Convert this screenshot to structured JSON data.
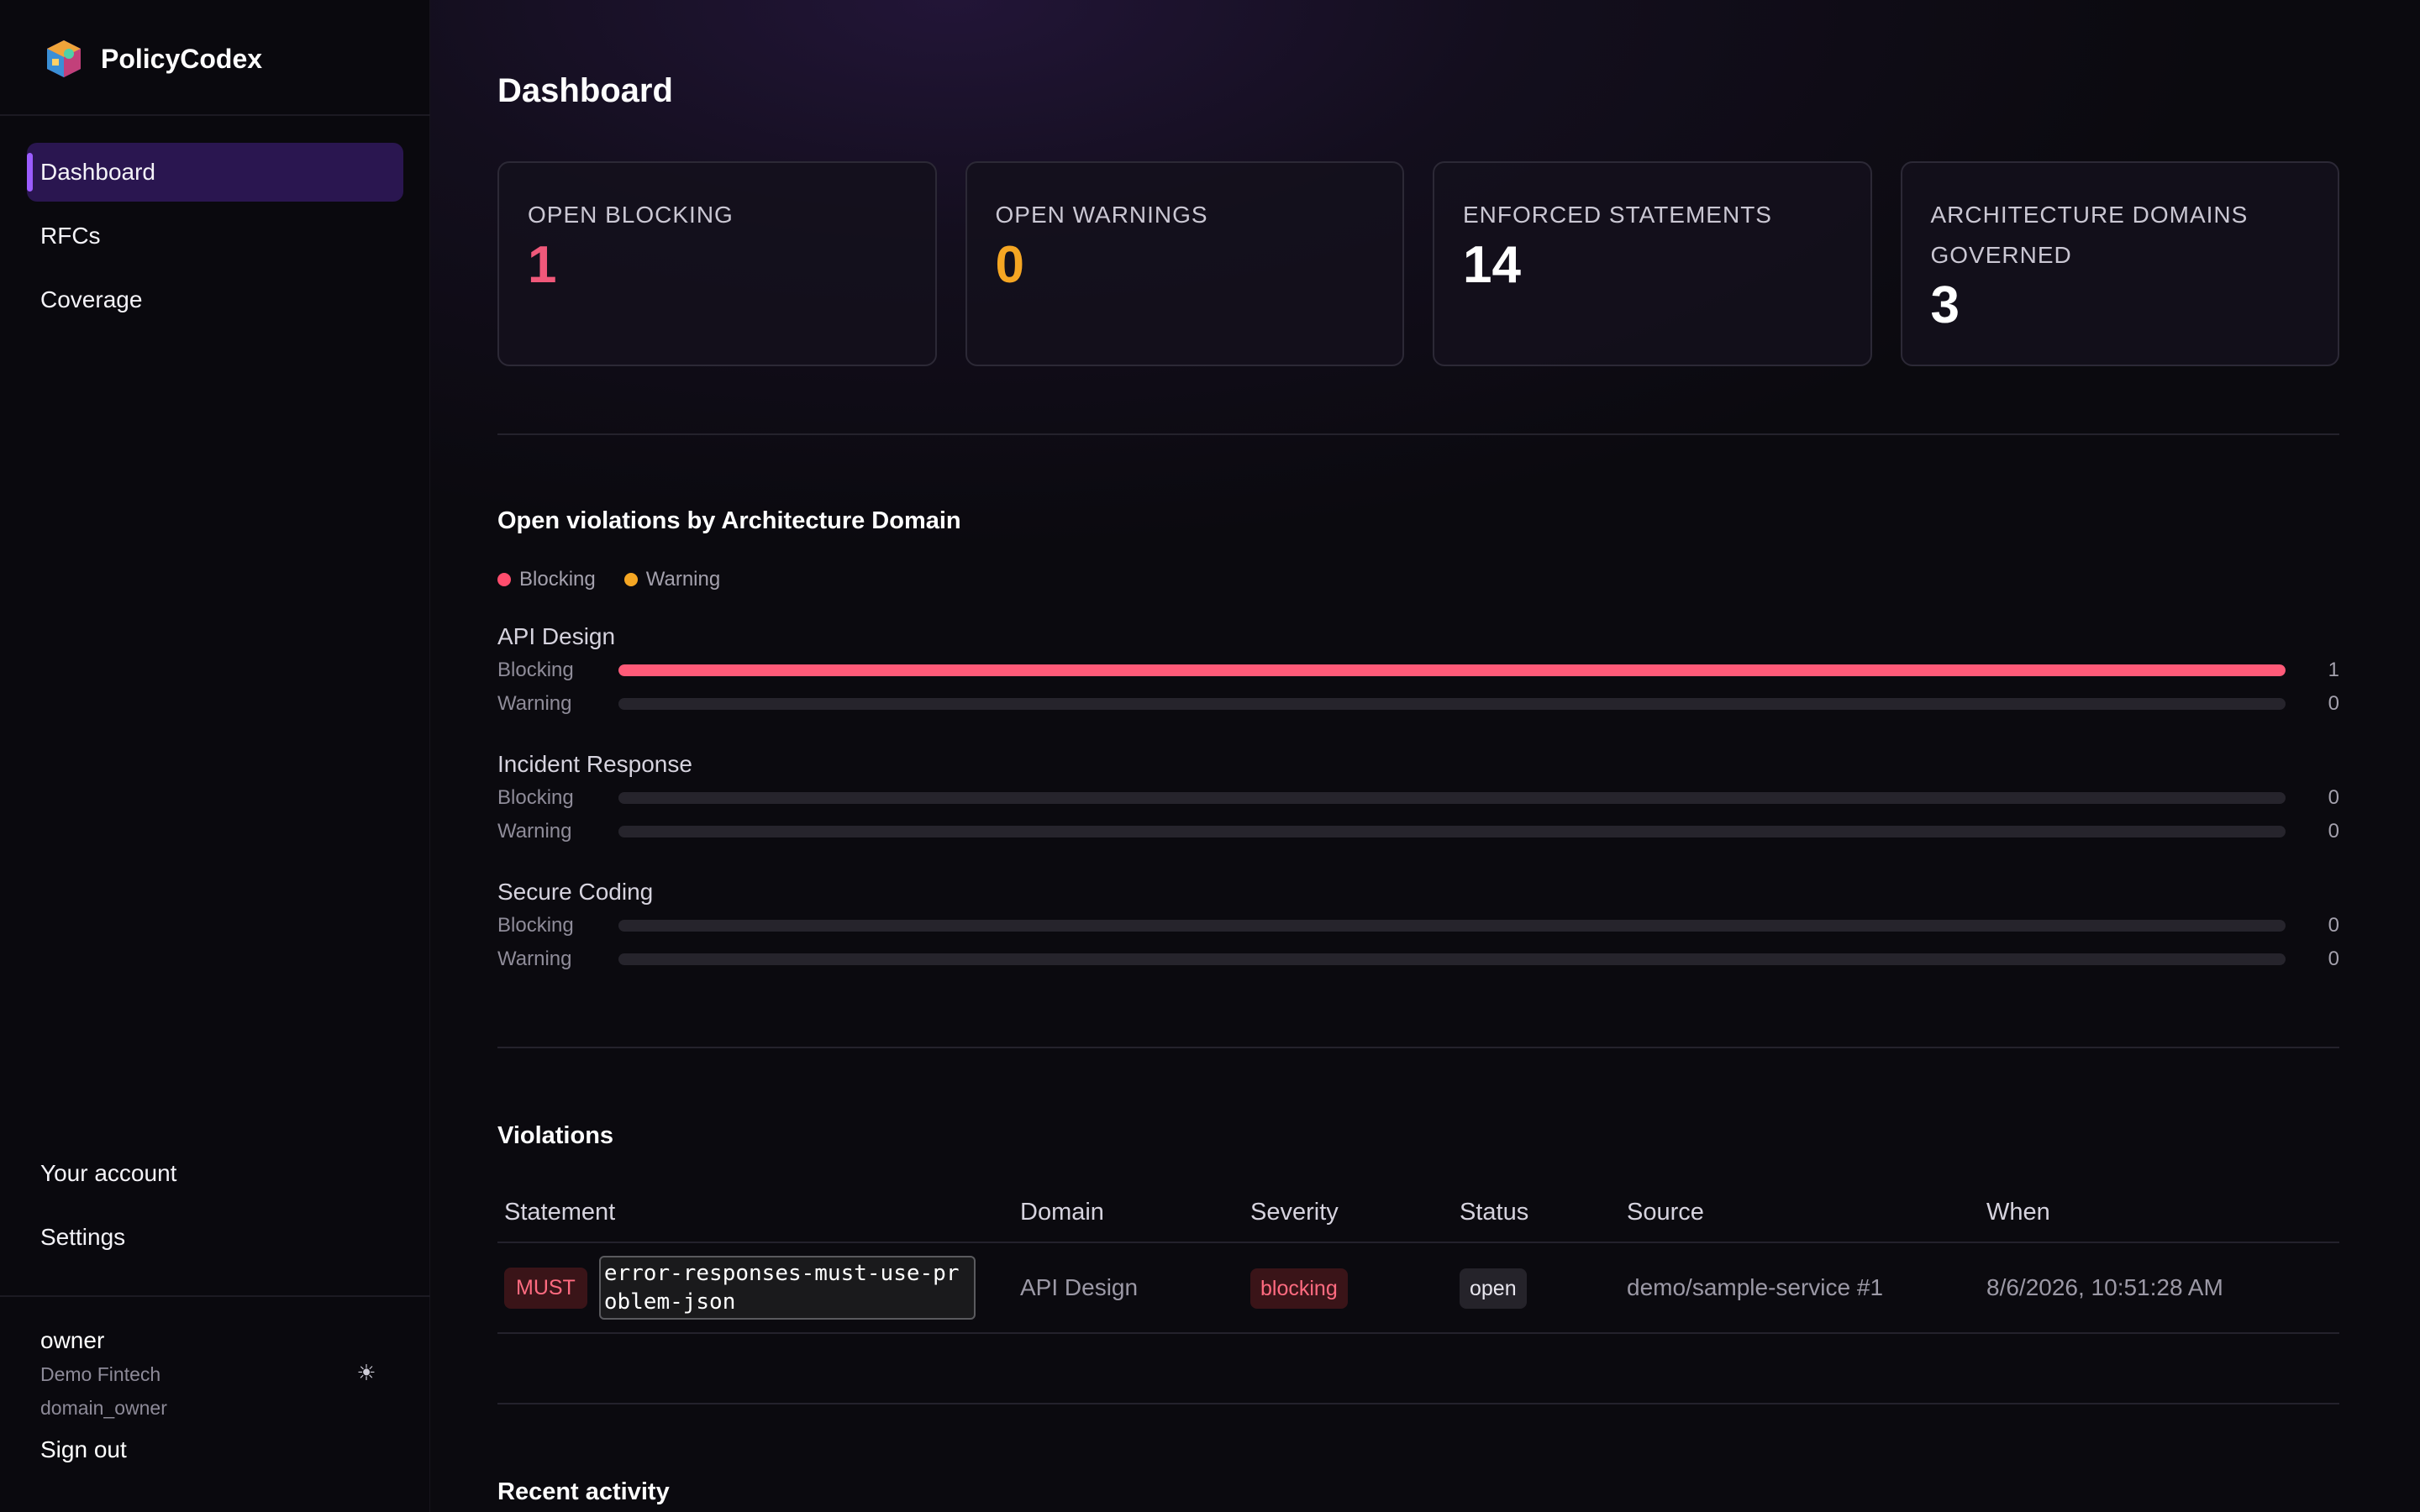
{
  "app": {
    "name": "PolicyCodex",
    "logo_icon": "cube-logo-icon"
  },
  "sidebar": {
    "nav": [
      {
        "label": "Dashboard",
        "active": true
      },
      {
        "label": "RFCs",
        "active": false
      },
      {
        "label": "Coverage",
        "active": false
      }
    ],
    "bottom_nav": [
      {
        "label": "Your account"
      },
      {
        "label": "Settings"
      }
    ],
    "user": {
      "name": "owner",
      "org": "Demo Fintech",
      "role": "domain_owner"
    },
    "theme_icon": "sun-icon",
    "sign_out_label": "Sign out"
  },
  "page": {
    "title": "Dashboard"
  },
  "stats": [
    {
      "label": "OPEN BLOCKING",
      "value": "1",
      "color": "#f0587a"
    },
    {
      "label": "OPEN WARNINGS",
      "value": "0",
      "color": "#f5a623"
    },
    {
      "label": "ENFORCED STATEMENTS",
      "value": "14",
      "color": "#ffffff"
    },
    {
      "label": "ARCHITECTURE DOMAINS GOVERNED",
      "value": "3",
      "color": "#ffffff"
    }
  ],
  "violations_by_domain": {
    "title": "Open violations by Architecture Domain",
    "legend": [
      {
        "label": "Blocking",
        "color": "#ff4d6d"
      },
      {
        "label": "Warning",
        "color": "#f5a623"
      }
    ],
    "max": 1,
    "domains": [
      {
        "name": "API Design",
        "rows": [
          {
            "label": "Blocking",
            "value": 1,
            "color": "#ff5a78"
          },
          {
            "label": "Warning",
            "value": 0,
            "color": "#f5a623"
          }
        ]
      },
      {
        "name": "Incident Response",
        "rows": [
          {
            "label": "Blocking",
            "value": 0,
            "color": "#ff5a78"
          },
          {
            "label": "Warning",
            "value": 0,
            "color": "#f5a623"
          }
        ]
      },
      {
        "name": "Secure Coding",
        "rows": [
          {
            "label": "Blocking",
            "value": 0,
            "color": "#ff5a78"
          },
          {
            "label": "Warning",
            "value": 0,
            "color": "#f5a623"
          }
        ]
      }
    ]
  },
  "violations": {
    "title": "Violations",
    "columns": [
      "Statement",
      "Domain",
      "Severity",
      "Status",
      "Source",
      "When"
    ],
    "rows": [
      {
        "level": "MUST",
        "statement": "error-responses-must-use-problem-json",
        "domain": "API Design",
        "severity": "blocking",
        "status": "open",
        "source": "demo/sample-service #1",
        "when": "8/6/2026, 10:51:28 AM"
      }
    ]
  },
  "recent_activity": {
    "title": "Recent activity"
  }
}
